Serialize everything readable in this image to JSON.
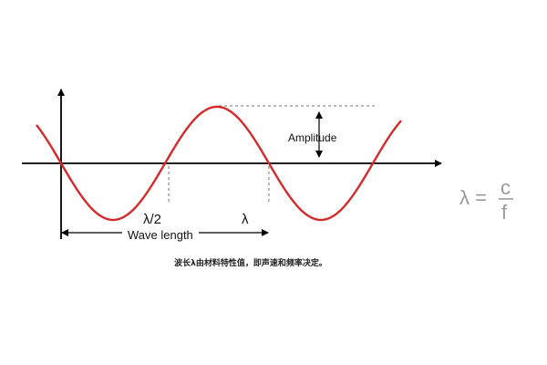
{
  "diagram": {
    "labels": {
      "amplitude": "Amplitude",
      "half_wavelength": "λ/2",
      "wavelength": "λ",
      "wave_length": "Wave length"
    },
    "formula": {
      "lhs": "λ =",
      "numerator": "c",
      "denominator": "f"
    },
    "colors": {
      "wave": "#d42a2a",
      "axes": "#000000",
      "guides": "#777777",
      "formula": "#9a9a9a"
    }
  },
  "caption": "波长λ由材料特性值，即声速和频率决定。"
}
